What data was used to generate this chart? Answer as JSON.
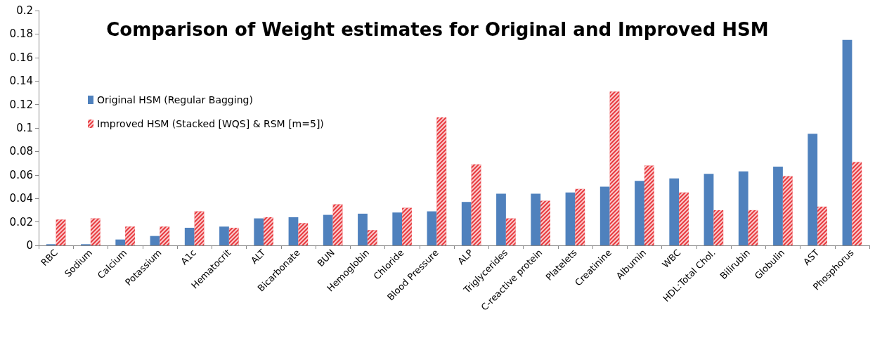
{
  "chart_data": {
    "type": "bar",
    "title": "Comparison of Weight estimates for Original and Improved HSM",
    "categories": [
      "RBC",
      "Sodium",
      "Calcium",
      "Potassium",
      "A1c",
      "Hematocrit",
      "ALT",
      "Bicarbonate",
      "BUN",
      "Hemoglobin",
      "Chloride",
      "Blood Pressure",
      "ALP",
      "Triglycerides",
      "C-reactive protein",
      "Platelets",
      "Creatinine",
      "Albumin",
      "WBC",
      "HDL:Total Chol.",
      "Bilirubin",
      "Globulin",
      "AST",
      "Phosphorus"
    ],
    "series": [
      {
        "name": "Original HSM (Regular Bagging)",
        "color": "#4f81bd",
        "values": [
          0.001,
          0.001,
          0.005,
          0.008,
          0.015,
          0.016,
          0.023,
          0.024,
          0.026,
          0.027,
          0.028,
          0.029,
          0.037,
          0.044,
          0.044,
          0.045,
          0.05,
          0.055,
          0.057,
          0.061,
          0.063,
          0.067,
          0.095,
          0.175
        ]
      },
      {
        "name": "Improved HSM (Stacked [WQS] & RSM [m=5])",
        "color": "#e8383d",
        "values": [
          0.022,
          0.023,
          0.016,
          0.016,
          0.029,
          0.015,
          0.024,
          0.019,
          0.035,
          0.013,
          0.032,
          0.109,
          0.069,
          0.023,
          0.038,
          0.048,
          0.131,
          0.068,
          0.045,
          0.03,
          0.03,
          0.059,
          0.033,
          0.071
        ]
      }
    ],
    "ylim": [
      0,
      0.2
    ],
    "yticks": [
      0,
      0.02,
      0.04,
      0.06,
      0.08,
      0.1,
      0.12,
      0.14,
      0.16,
      0.18,
      0.2
    ],
    "grid": false,
    "legend": "top left"
  }
}
